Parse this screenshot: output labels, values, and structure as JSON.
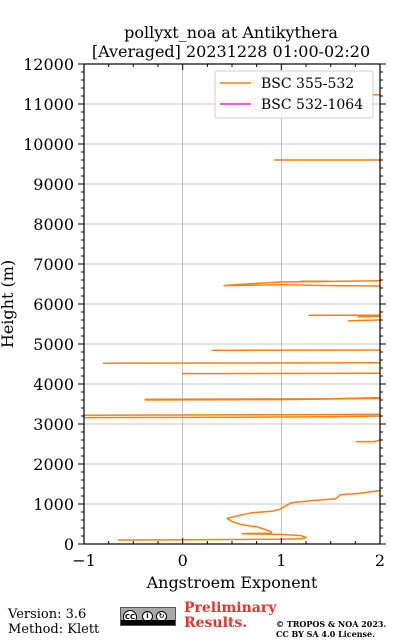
{
  "chart_data": {
    "type": "line",
    "title": "pollyxt_noa at Antikythera",
    "subtitle": "[Averaged] 20231228 01:00-02:20",
    "xlabel": "Angstroem Exponent",
    "ylabel": "Height (m)",
    "xlim": [
      -1,
      2
    ],
    "ylim": [
      0,
      12000
    ],
    "xticks": [
      -1,
      0,
      1,
      2
    ],
    "yticks": [
      0,
      1000,
      2000,
      3000,
      4000,
      5000,
      6000,
      7000,
      8000,
      9000,
      10000,
      11000,
      12000
    ],
    "grid": true,
    "legend_position": "top-right",
    "series": [
      {
        "name": "BSC 355-532",
        "color": "#ff7f0e",
        "segments": [
          [
            [
              -0.65,
              100
            ],
            [
              0.3,
              110
            ],
            [
              1.0,
              120
            ],
            [
              1.2,
              130
            ],
            [
              1.25,
              160
            ],
            [
              1.2,
              210
            ],
            [
              1.0,
              240
            ],
            [
              0.9,
              240
            ],
            [
              0.8,
              250
            ],
            [
              0.7,
              250
            ],
            [
              0.6,
              260
            ],
            [
              0.9,
              270
            ],
            [
              0.9,
              300
            ],
            [
              0.85,
              350
            ],
            [
              0.8,
              390
            ],
            [
              0.75,
              430
            ],
            [
              0.6,
              480
            ],
            [
              0.5,
              560
            ],
            [
              0.45,
              640
            ],
            [
              0.55,
              700
            ],
            [
              0.7,
              780
            ],
            [
              0.9,
              820
            ],
            [
              0.98,
              860
            ],
            [
              1.02,
              920
            ],
            [
              1.1,
              1030
            ],
            [
              1.3,
              1080
            ],
            [
              1.55,
              1130
            ],
            [
              1.6,
              1230
            ],
            [
              1.8,
              1270
            ],
            [
              1.95,
              1320
            ],
            [
              2.0,
              1330
            ]
          ],
          [
            [
              1.76,
              2560
            ],
            [
              1.95,
              2560
            ],
            [
              2.0,
              2600
            ]
          ],
          [
            [
              -1.0,
              3160
            ],
            [
              0.5,
              3170
            ],
            [
              1.5,
              3180
            ],
            [
              2.0,
              3200
            ]
          ],
          [
            [
              -1.0,
              3220
            ],
            [
              2.0,
              3240
            ]
          ],
          [
            [
              -0.38,
              3600
            ],
            [
              1.0,
              3610
            ],
            [
              2.0,
              3640
            ]
          ],
          [
            [
              -0.38,
              3620
            ],
            [
              1.5,
              3630
            ],
            [
              2.0,
              3660
            ]
          ],
          [
            [
              0.0,
              4260
            ],
            [
              2.0,
              4270
            ]
          ],
          [
            [
              -0.8,
              4520
            ],
            [
              2.0,
              4530
            ]
          ],
          [
            [
              0.3,
              4840
            ],
            [
              2.0,
              4850
            ]
          ],
          [
            [
              1.68,
              5580
            ],
            [
              2.0,
              5600
            ]
          ],
          [
            [
              1.28,
              5720
            ],
            [
              2.0,
              5720
            ]
          ],
          [
            [
              1.78,
              5680
            ],
            [
              2.0,
              5690
            ]
          ],
          [
            [
              0.42,
              6460
            ],
            [
              1.0,
              6480
            ],
            [
              1.5,
              6460
            ],
            [
              2.0,
              6450
            ]
          ],
          [
            [
              0.45,
              6470
            ],
            [
              1.0,
              6550
            ],
            [
              2.0,
              6580
            ]
          ],
          [
            [
              1.2,
              6570
            ],
            [
              1.48,
              6570
            ]
          ],
          [
            [
              0.93,
              9600
            ],
            [
              2.0,
              9600
            ]
          ],
          [
            [
              1.93,
              11230
            ],
            [
              2.0,
              11230
            ]
          ]
        ]
      },
      {
        "name": "BSC 532-1064",
        "color": "#e322e3",
        "segments": []
      }
    ]
  },
  "footer": {
    "version": "Version: 3.6",
    "method": "Method: Klett",
    "preliminary_line1": "Preliminary",
    "preliminary_line2": "Results.",
    "license_line1": "© TROPOS & NOA 2023.",
    "license_line2": "CC BY SA 4.0 License.",
    "badge_text": "CC"
  }
}
